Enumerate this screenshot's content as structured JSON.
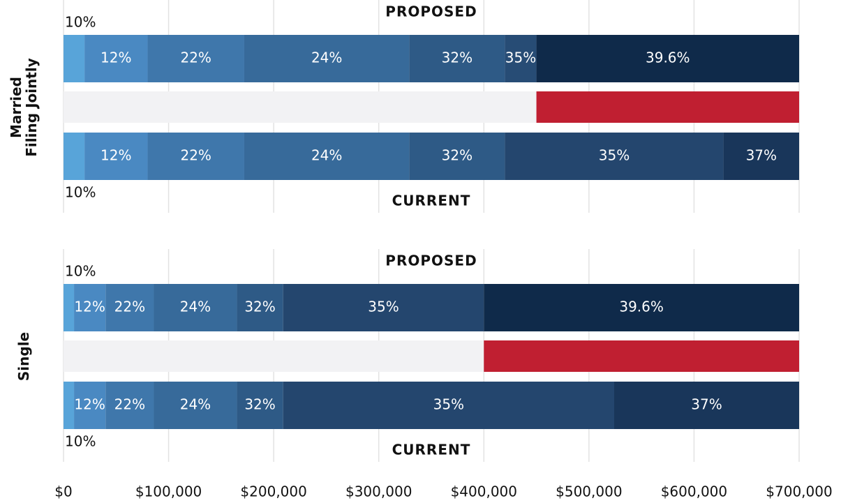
{
  "chart_data": {
    "type": "stacked-bar-horizontal",
    "xlim": [
      0,
      700000
    ],
    "xticks": [
      {
        "value": 0,
        "label": "$0"
      },
      {
        "value": 100000,
        "label": "$100,000"
      },
      {
        "value": 200000,
        "label": "$200,000"
      },
      {
        "value": 300000,
        "label": "$300,000"
      },
      {
        "value": 400000,
        "label": "$400,000"
      },
      {
        "value": 500000,
        "label": "$500,000"
      },
      {
        "value": 600000,
        "label": "$600,000"
      },
      {
        "value": 700000,
        "label": "$700,000"
      }
    ],
    "grid": true,
    "panels": [
      {
        "label": [
          "Married",
          "Filing Jointly"
        ],
        "proposed": {
          "title": "PROPOSED",
          "labels": [
            "10%",
            "12%",
            "22%",
            "24%",
            "32%",
            "35%",
            "39.6%"
          ],
          "values": [
            20000,
            60000,
            92000,
            157000,
            91000,
            30000,
            250000
          ],
          "colors": [
            "#58a4d9",
            "#4a89c2",
            "#3f77ab",
            "#376a9a",
            "#2e5a86",
            "#274c75",
            "#0f2a4a"
          ]
        },
        "gap": {
          "values": [
            450000,
            250000
          ],
          "colors": [
            "#f2f2f4",
            "#c01f31"
          ]
        },
        "current": {
          "title": "CURRENT",
          "labels": [
            "10%",
            "12%",
            "22%",
            "24%",
            "32%",
            "35%",
            "37%"
          ],
          "values": [
            20000,
            60000,
            92000,
            157000,
            91000,
            208000,
            72000
          ],
          "colors": [
            "#58a4d9",
            "#4a89c2",
            "#3f77ab",
            "#376a9a",
            "#2e5a86",
            "#24466e",
            "#19365a"
          ]
        }
      },
      {
        "label": [
          "Single"
        ],
        "proposed": {
          "title": "PROPOSED",
          "labels": [
            "10%",
            "12%",
            "22%",
            "24%",
            "32%",
            "35%",
            "39.6%"
          ],
          "values": [
            10000,
            30000,
            46000,
            79000,
            44000,
            191000,
            300000
          ],
          "colors": [
            "#58a4d9",
            "#4a89c2",
            "#3f77ab",
            "#376a9a",
            "#2e5a86",
            "#24466e",
            "#0f2a4a"
          ]
        },
        "gap": {
          "values": [
            400000,
            300000
          ],
          "colors": [
            "#f2f2f4",
            "#c01f31"
          ]
        },
        "current": {
          "title": "CURRENT",
          "labels": [
            "10%",
            "12%",
            "22%",
            "24%",
            "32%",
            "35%",
            "37%"
          ],
          "values": [
            10000,
            30000,
            46000,
            79000,
            44000,
            315000,
            176000
          ],
          "colors": [
            "#58a4d9",
            "#4a89c2",
            "#3f77ab",
            "#376a9a",
            "#2e5a86",
            "#24466e",
            "#19365a"
          ]
        }
      }
    ]
  }
}
